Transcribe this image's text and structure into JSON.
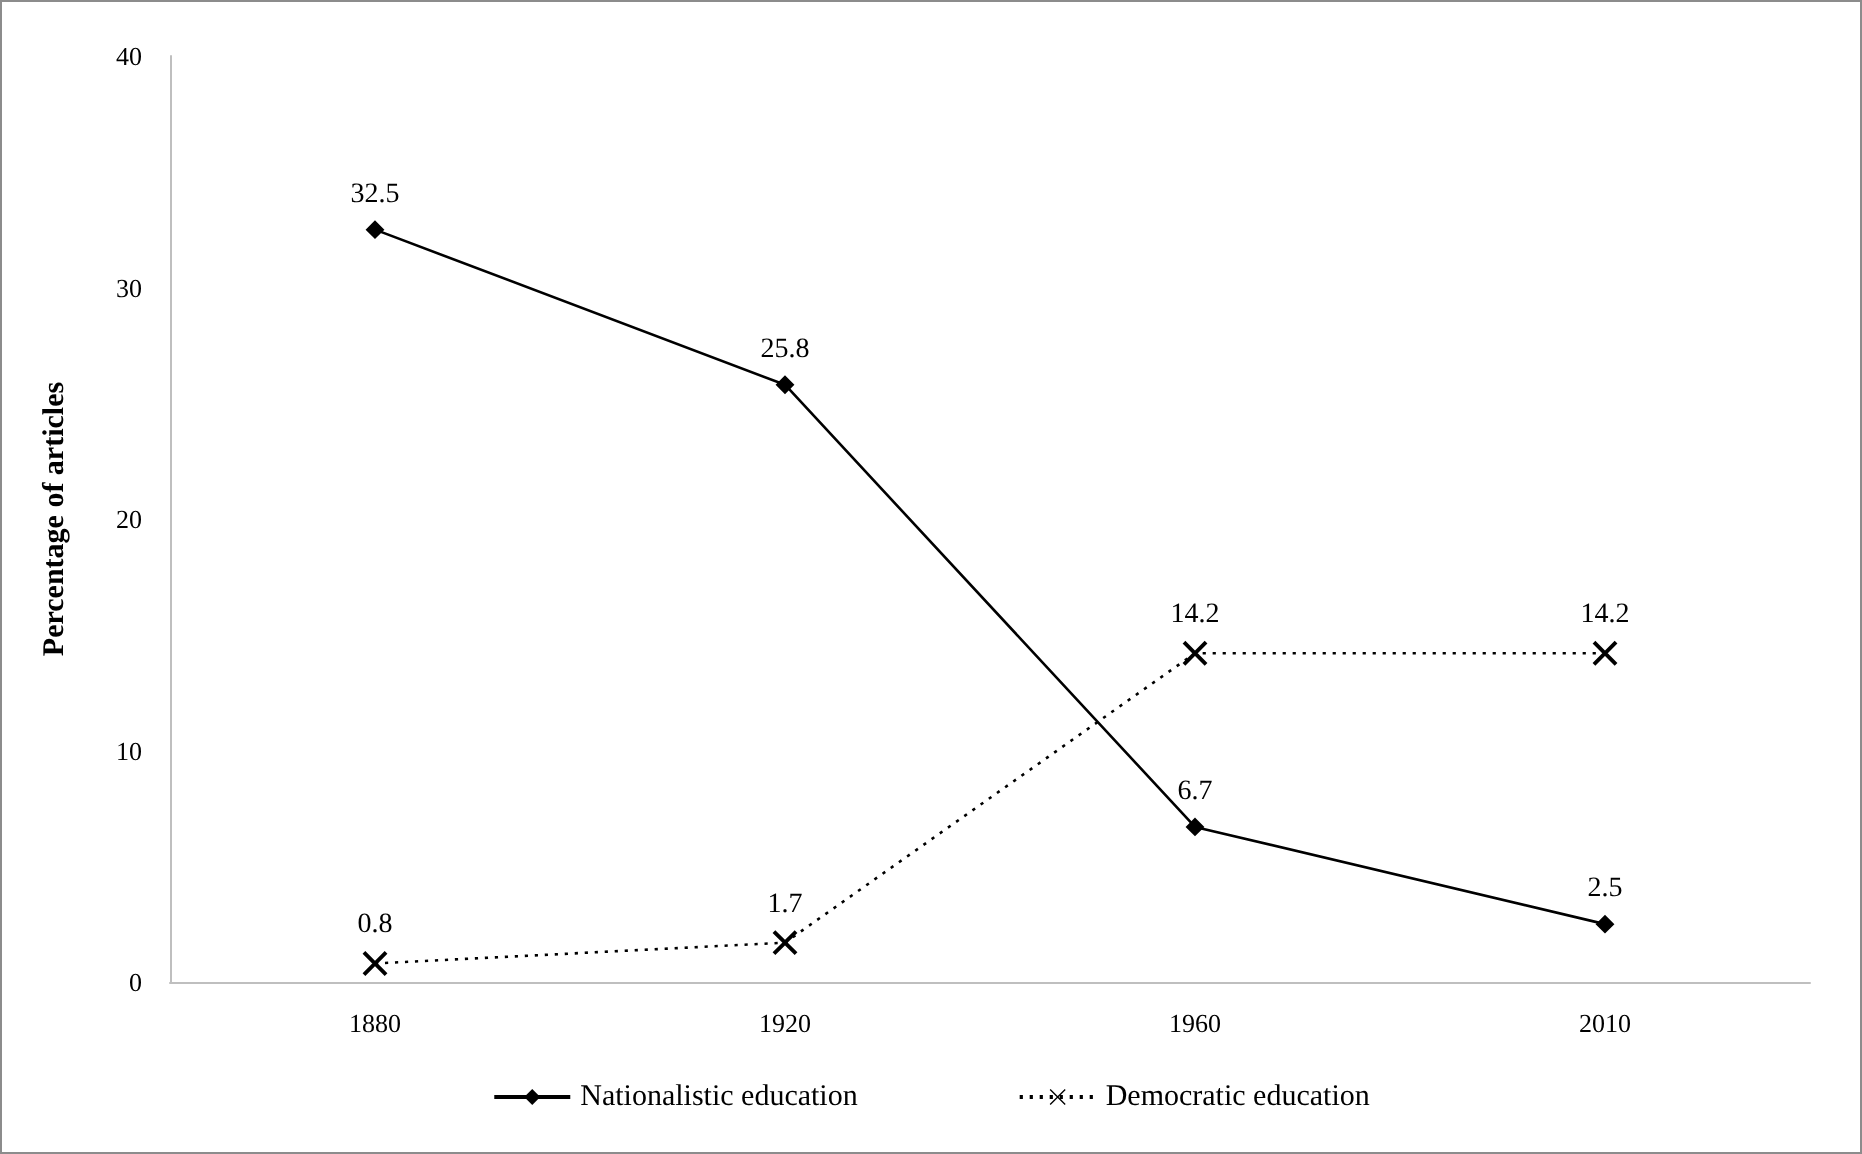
{
  "chart_data": {
    "type": "line",
    "ylabel": "Percentage of articles",
    "categories": [
      "1880",
      "1920",
      "1960",
      "2010"
    ],
    "series": [
      {
        "name": "Nationalistic education",
        "color": "#000000",
        "values": [
          32.5,
          25.8,
          6.7,
          2.5
        ],
        "marker": "diamond",
        "line_style": "solid"
      },
      {
        "name": "Democratic education",
        "color": "#000000",
        "values": [
          0.8,
          1.7,
          14.2,
          14.2
        ],
        "marker": "cross",
        "line_style": "dotted"
      }
    ],
    "ylim": [
      0,
      40
    ],
    "yticks": [
      0,
      10,
      20,
      30,
      40
    ],
    "grid": false,
    "legend": "bottom",
    "data_labels": true
  }
}
